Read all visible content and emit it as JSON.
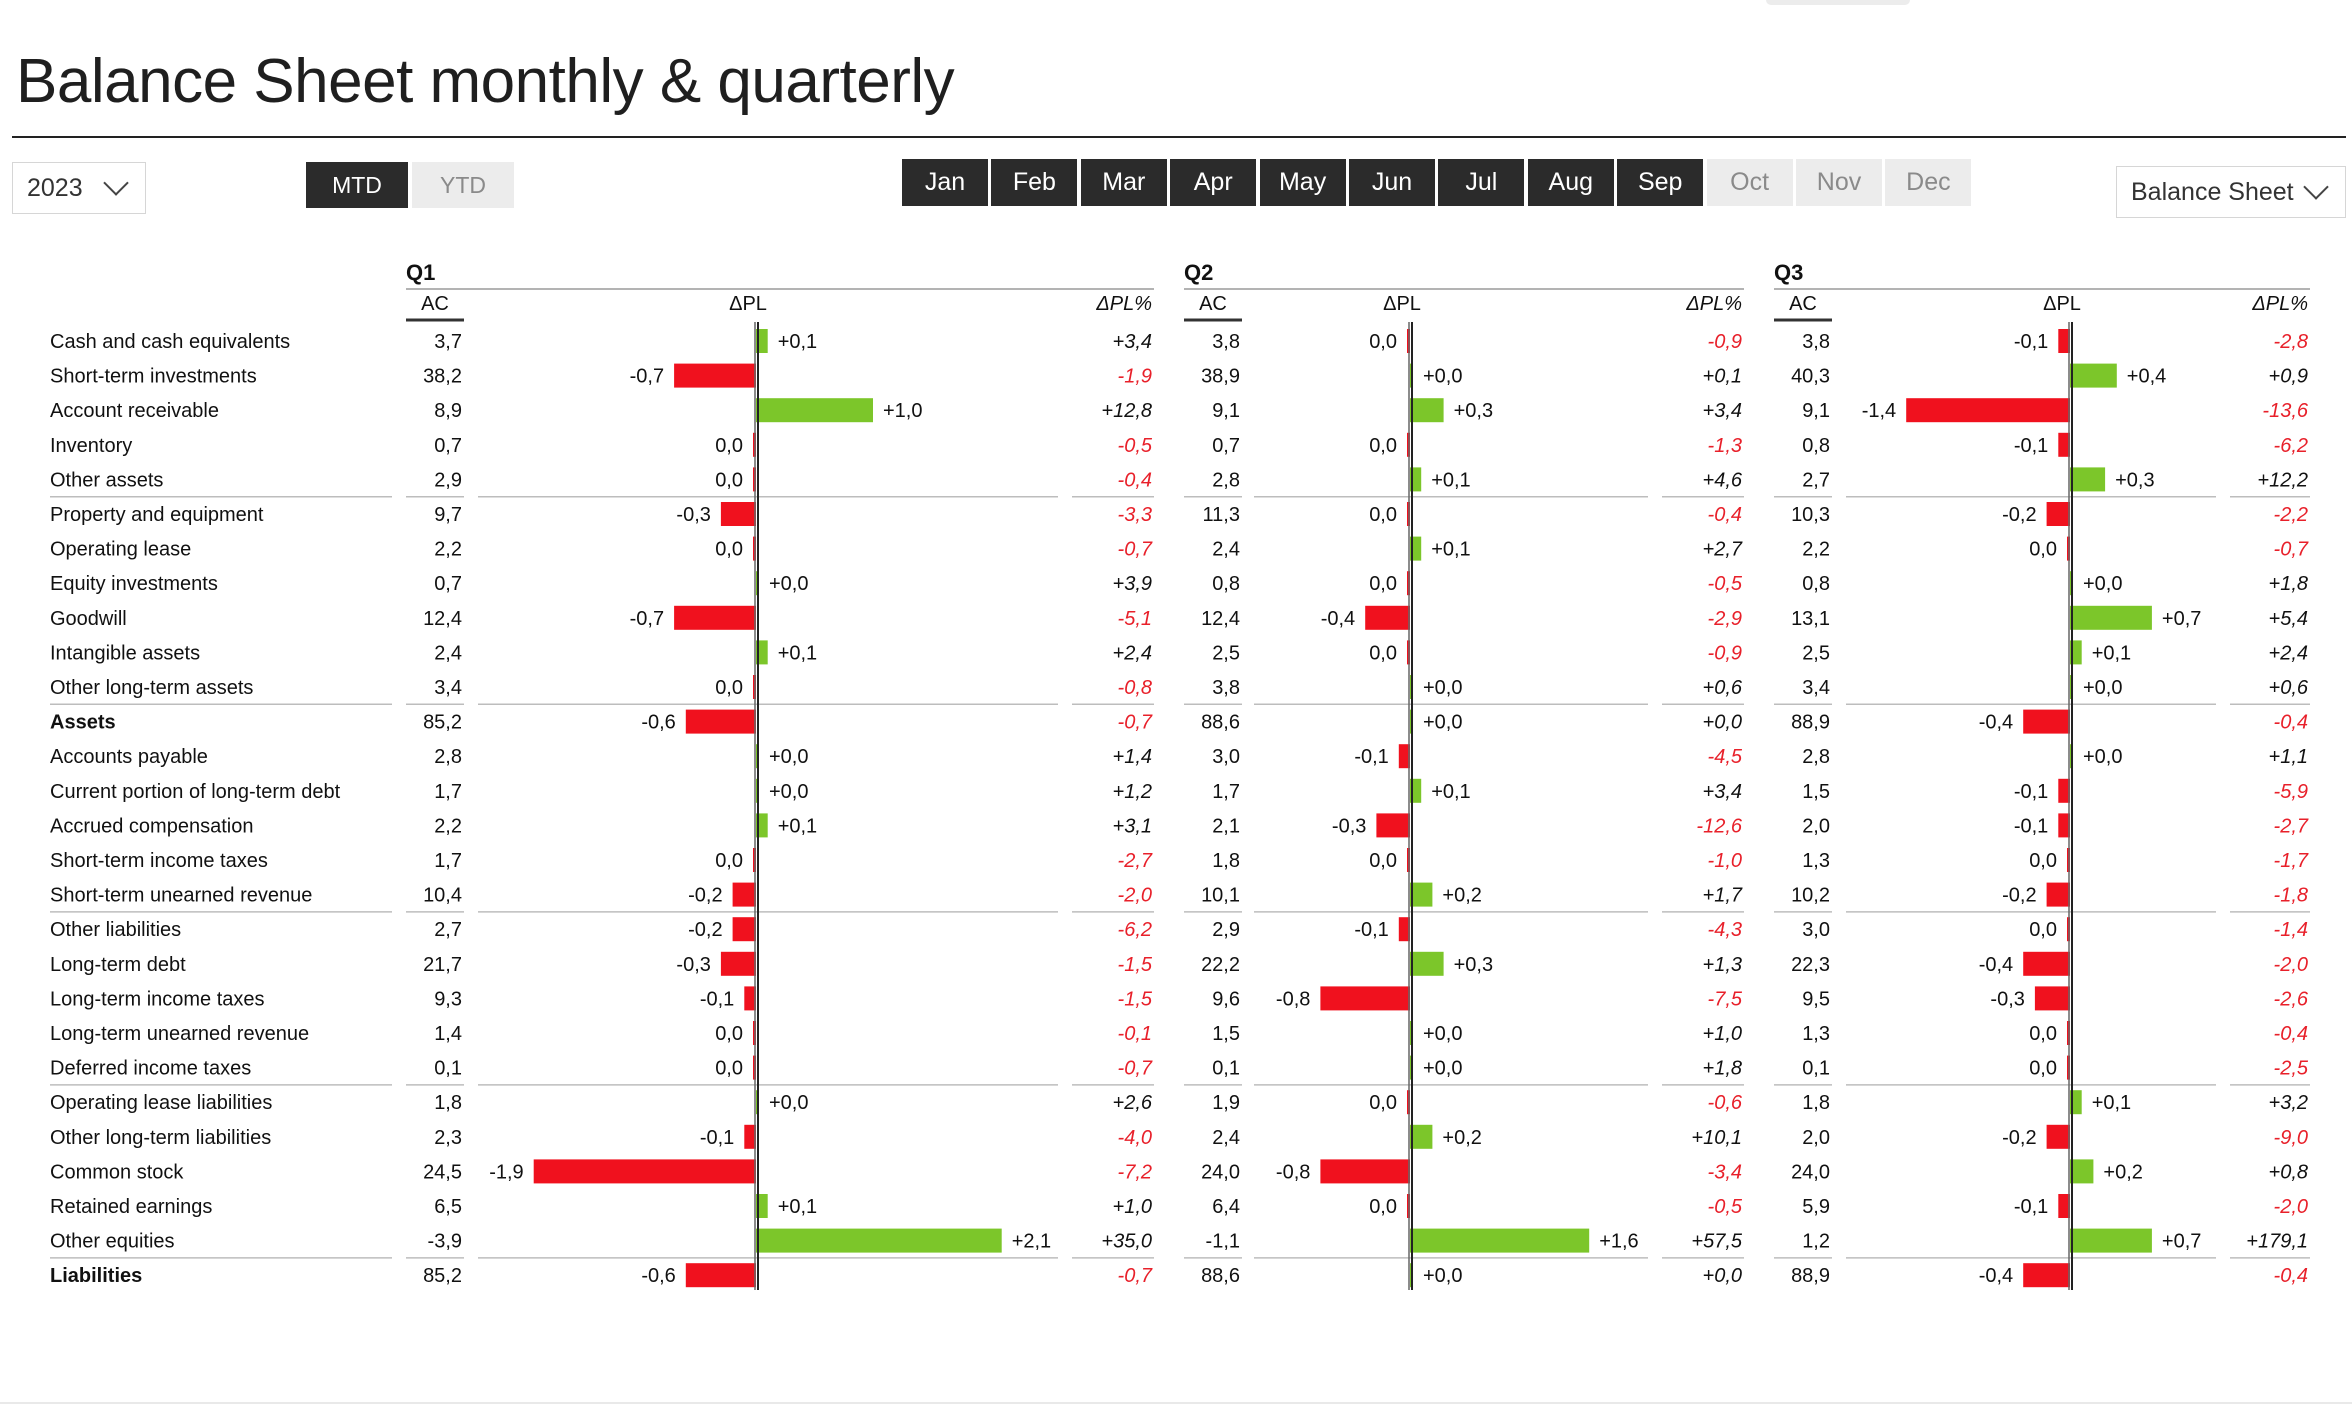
{
  "title": "Balance Sheet monthly & quarterly",
  "filters": {
    "year": "2023",
    "mode_options": [
      "MTD",
      "YTD"
    ],
    "mode_selected": "MTD",
    "months": [
      {
        "label": "Jan",
        "active": true
      },
      {
        "label": "Feb",
        "active": true
      },
      {
        "label": "Mar",
        "active": true
      },
      {
        "label": "Apr",
        "active": true
      },
      {
        "label": "May",
        "active": true
      },
      {
        "label": "Jun",
        "active": true
      },
      {
        "label": "Jul",
        "active": true
      },
      {
        "label": "Aug",
        "active": true
      },
      {
        "label": "Sep",
        "active": true
      },
      {
        "label": "Oct",
        "active": false
      },
      {
        "label": "Nov",
        "active": false
      },
      {
        "label": "Dec",
        "active": false
      }
    ],
    "report": "Balance Sheet"
  },
  "colors": {
    "positive": "#7cc62a",
    "negative": "#f0111e",
    "negative_text": "#e8202a",
    "axis": "#333333",
    "active_button": "#2b2b2b",
    "inactive_button": "#ececec"
  },
  "chart_data": {
    "type": "table",
    "column_headers": {
      "ac": "AC",
      "dpl": "ΔPL",
      "dplpct": "ΔPL%"
    },
    "rows": [
      {
        "label": "Cash and cash equivalents",
        "bold": false
      },
      {
        "label": "Short-term investments",
        "bold": false
      },
      {
        "label": "Account receivable",
        "bold": false
      },
      {
        "label": "Inventory",
        "bold": false
      },
      {
        "label": "Other assets",
        "bold": false
      },
      {
        "label": "Property and equipment",
        "bold": false
      },
      {
        "label": "Operating lease",
        "bold": false
      },
      {
        "label": "Equity investments",
        "bold": false
      },
      {
        "label": "Goodwill",
        "bold": false
      },
      {
        "label": "Intangible assets",
        "bold": false
      },
      {
        "label": "Other long-term assets",
        "bold": false
      },
      {
        "label": "Assets",
        "bold": true
      },
      {
        "label": "Accounts payable",
        "bold": false
      },
      {
        "label": "Current portion of long-term debt",
        "bold": false
      },
      {
        "label": "Accrued compensation",
        "bold": false
      },
      {
        "label": "Short-term income taxes",
        "bold": false
      },
      {
        "label": "Short-term unearned revenue",
        "bold": false
      },
      {
        "label": "Other liabilities",
        "bold": false
      },
      {
        "label": "Long-term debt",
        "bold": false
      },
      {
        "label": "Long-term income taxes",
        "bold": false
      },
      {
        "label": "Long-term unearned revenue",
        "bold": false
      },
      {
        "label": "Deferred income taxes",
        "bold": false
      },
      {
        "label": "Operating lease liabilities",
        "bold": false
      },
      {
        "label": "Other long-term liabilities",
        "bold": false
      },
      {
        "label": "Common stock",
        "bold": false
      },
      {
        "label": "Retained earnings",
        "bold": false
      },
      {
        "label": "Other equities",
        "bold": false
      },
      {
        "label": "Liabilities",
        "bold": true
      }
    ],
    "quarters": [
      {
        "name": "Q1",
        "ac": [
          "3,7",
          "38,2",
          "8,9",
          "0,7",
          "2,9",
          "9,7",
          "2,2",
          "0,7",
          "12,4",
          "2,4",
          "3,4",
          "85,2",
          "2,8",
          "1,7",
          "2,2",
          "1,7",
          "10,4",
          "2,7",
          "21,7",
          "9,3",
          "1,4",
          "0,1",
          "1,8",
          "2,3",
          "24,5",
          "6,5",
          "-3,9",
          "85,2"
        ],
        "dpl": [
          0.1,
          -0.7,
          1.0,
          0.0,
          0.0,
          -0.3,
          0.0,
          0.0,
          -0.7,
          0.1,
          0.0,
          -0.6,
          0.0,
          0.0,
          0.1,
          0.0,
          -0.2,
          -0.2,
          -0.3,
          -0.1,
          0.0,
          0.0,
          0.0,
          -0.1,
          -1.9,
          0.1,
          2.1,
          -0.6
        ],
        "dpl_labels": [
          "+0,1",
          "-0,7",
          "+1,0",
          "0,0",
          "0,0",
          "-0,3",
          "0,0",
          "+0,0",
          "-0,7",
          "+0,1",
          "0,0",
          "-0,6",
          "+0,0",
          "+0,0",
          "+0,1",
          "0,0",
          "-0,2",
          "-0,2",
          "-0,3",
          "-0,1",
          "0,0",
          "0,0",
          "+0,0",
          "-0,1",
          "-1,9",
          "+0,1",
          "+2,1",
          "-0,6"
        ],
        "dpl_sign": [
          1,
          -1,
          1,
          -1,
          -1,
          -1,
          -1,
          1,
          -1,
          1,
          -1,
          -1,
          1,
          1,
          1,
          -1,
          -1,
          -1,
          -1,
          -1,
          -1,
          -1,
          1,
          -1,
          -1,
          1,
          1,
          -1
        ],
        "dplpct": [
          "+3,4",
          "-1,9",
          "+12,8",
          "-0,5",
          "-0,4",
          "-3,3",
          "-0,7",
          "+3,9",
          "-5,1",
          "+2,4",
          "-0,8",
          "-0,7",
          "+1,4",
          "+1,2",
          "+3,1",
          "-2,7",
          "-2,0",
          "-6,2",
          "-1,5",
          "-1,5",
          "-0,1",
          "-0,7",
          "+2,6",
          "-4,0",
          "-7,2",
          "+1,0",
          "+35,0",
          "-0,7"
        ]
      },
      {
        "name": "Q2",
        "ac": [
          "3,8",
          "38,9",
          "9,1",
          "0,7",
          "2,8",
          "11,3",
          "2,4",
          "0,8",
          "12,4",
          "2,5",
          "3,8",
          "88,6",
          "3,0",
          "1,7",
          "2,1",
          "1,8",
          "10,1",
          "2,9",
          "22,2",
          "9,6",
          "1,5",
          "0,1",
          "1,9",
          "2,4",
          "24,0",
          "6,4",
          "-1,1",
          "88,6"
        ],
        "dpl": [
          0.0,
          0.0,
          0.3,
          0.0,
          0.1,
          0.0,
          0.1,
          0.0,
          -0.4,
          0.0,
          0.0,
          0.0,
          -0.1,
          0.1,
          -0.3,
          0.0,
          0.2,
          -0.1,
          0.3,
          -0.8,
          0.0,
          0.0,
          0.0,
          0.2,
          -0.8,
          0.0,
          1.6,
          0.0
        ],
        "dpl_labels": [
          "0,0",
          "+0,0",
          "+0,3",
          "0,0",
          "+0,1",
          "0,0",
          "+0,1",
          "0,0",
          "-0,4",
          "0,0",
          "+0,0",
          "+0,0",
          "-0,1",
          "+0,1",
          "-0,3",
          "0,0",
          "+0,2",
          "-0,1",
          "+0,3",
          "-0,8",
          "+0,0",
          "+0,0",
          "0,0",
          "+0,2",
          "-0,8",
          "0,0",
          "+1,6",
          "+0,0"
        ],
        "dpl_sign": [
          -1,
          1,
          1,
          -1,
          1,
          -1,
          1,
          -1,
          -1,
          -1,
          1,
          1,
          -1,
          1,
          -1,
          -1,
          1,
          -1,
          1,
          -1,
          1,
          1,
          -1,
          1,
          -1,
          -1,
          1,
          1
        ],
        "dplpct": [
          "-0,9",
          "+0,1",
          "+3,4",
          "-1,3",
          "+4,6",
          "-0,4",
          "+2,7",
          "-0,5",
          "-2,9",
          "-0,9",
          "+0,6",
          "+0,0",
          "-4,5",
          "+3,4",
          "-12,6",
          "-1,0",
          "+1,7",
          "-4,3",
          "+1,3",
          "-7,5",
          "+1,0",
          "+1,8",
          "-0,6",
          "+10,1",
          "-3,4",
          "-0,5",
          "+57,5",
          "+0,0"
        ]
      },
      {
        "name": "Q3",
        "ac": [
          "3,8",
          "40,3",
          "9,1",
          "0,8",
          "2,7",
          "10,3",
          "2,2",
          "0,8",
          "13,1",
          "2,5",
          "3,4",
          "88,9",
          "2,8",
          "1,5",
          "2,0",
          "1,3",
          "10,2",
          "3,0",
          "22,3",
          "9,5",
          "1,3",
          "0,1",
          "1,8",
          "2,0",
          "24,0",
          "5,9",
          "1,2",
          "88,9"
        ],
        "dpl": [
          -0.1,
          0.4,
          -1.4,
          -0.1,
          0.3,
          -0.2,
          0.0,
          0.0,
          0.7,
          0.1,
          0.0,
          -0.4,
          0.0,
          -0.1,
          -0.1,
          0.0,
          -0.2,
          0.0,
          -0.4,
          -0.3,
          0.0,
          0.0,
          0.1,
          -0.2,
          0.2,
          -0.1,
          0.7,
          -0.4
        ],
        "dpl_labels": [
          "-0,1",
          "+0,4",
          "-1,4",
          "-0,1",
          "+0,3",
          "-0,2",
          "0,0",
          "+0,0",
          "+0,7",
          "+0,1",
          "+0,0",
          "-0,4",
          "+0,0",
          "-0,1",
          "-0,1",
          "0,0",
          "-0,2",
          "0,0",
          "-0,4",
          "-0,3",
          "0,0",
          "0,0",
          "+0,1",
          "-0,2",
          "+0,2",
          "-0,1",
          "+0,7",
          "-0,4"
        ],
        "dpl_sign": [
          -1,
          1,
          -1,
          -1,
          1,
          -1,
          -1,
          1,
          1,
          1,
          1,
          -1,
          1,
          -1,
          -1,
          -1,
          -1,
          -1,
          -1,
          -1,
          -1,
          -1,
          1,
          -1,
          1,
          -1,
          1,
          -1
        ],
        "dplpct": [
          "-2,8",
          "+0,9",
          "-13,6",
          "-6,2",
          "+12,2",
          "-2,2",
          "-0,7",
          "+1,8",
          "+5,4",
          "+2,4",
          "+0,6",
          "-0,4",
          "+1,1",
          "-5,9",
          "-2,7",
          "-1,7",
          "-1,8",
          "-1,4",
          "-2,0",
          "-2,6",
          "-0,4",
          "-2,5",
          "+3,2",
          "-9,0",
          "+0,8",
          "-2,0",
          "+179,1",
          "-0,4"
        ]
      }
    ]
  }
}
